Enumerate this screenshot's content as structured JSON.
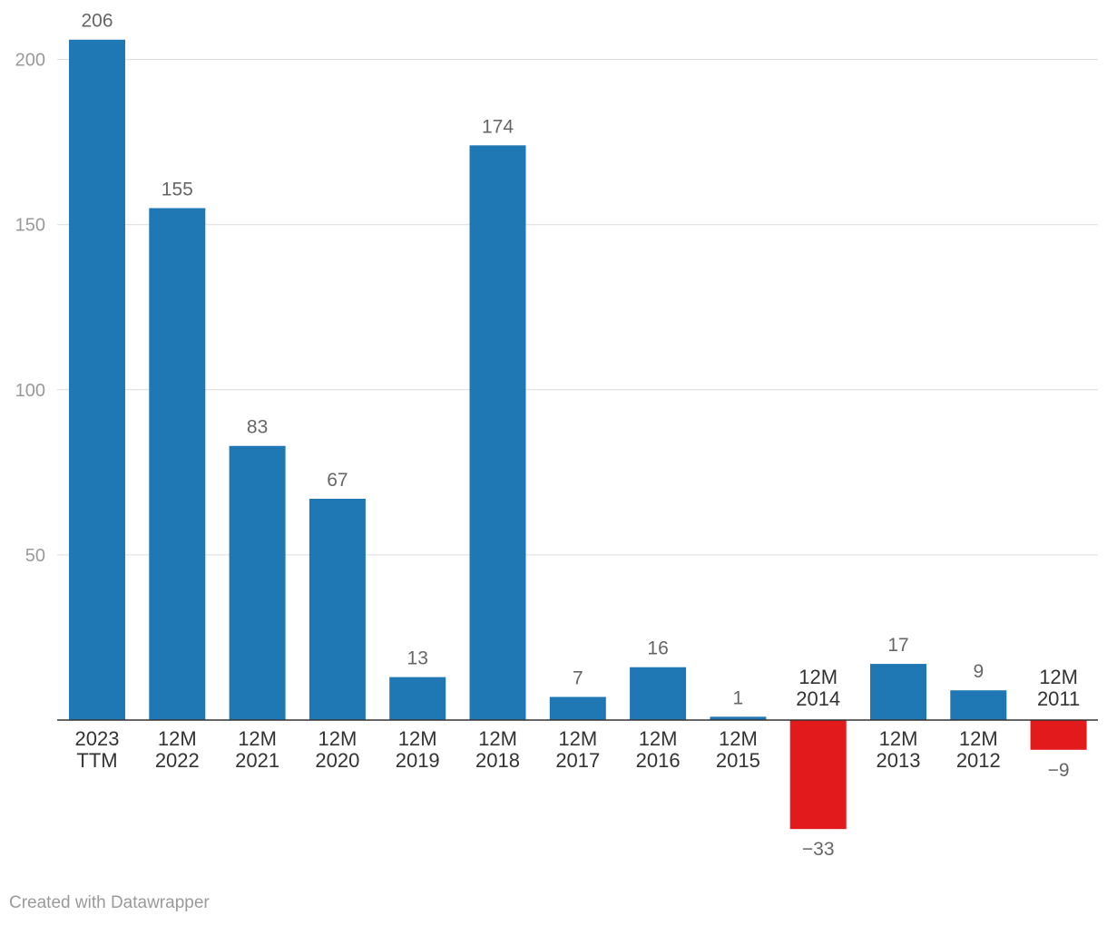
{
  "credit": "Created with Datawrapper",
  "colors": {
    "positive": "#1f77b4",
    "negative": "#e31a1c",
    "axis": "#333333",
    "grid": "#dcdcdc"
  },
  "chart_data": {
    "type": "bar",
    "title": "",
    "xlabel": "",
    "ylabel": "",
    "ylim": [
      -40,
      210
    ],
    "yticks": [
      50,
      100,
      150,
      200
    ],
    "categories": [
      [
        "2023",
        "TTM"
      ],
      [
        "12M",
        "2022"
      ],
      [
        "12M",
        "2021"
      ],
      [
        "12M",
        "2020"
      ],
      [
        "12M",
        "2019"
      ],
      [
        "12M",
        "2018"
      ],
      [
        "12M",
        "2017"
      ],
      [
        "12M",
        "2016"
      ],
      [
        "12M",
        "2015"
      ],
      [
        "12M",
        "2014"
      ],
      [
        "12M",
        "2013"
      ],
      [
        "12M",
        "2012"
      ],
      [
        "12M",
        "2011"
      ]
    ],
    "values": [
      206,
      155,
      83,
      67,
      13,
      174,
      7,
      16,
      1,
      -33,
      17,
      9,
      -9
    ],
    "value_labels": [
      "206",
      "155",
      "83",
      "67",
      "13",
      "174",
      "7",
      "16",
      "1",
      "−33",
      "17",
      "9",
      "−9"
    ]
  }
}
